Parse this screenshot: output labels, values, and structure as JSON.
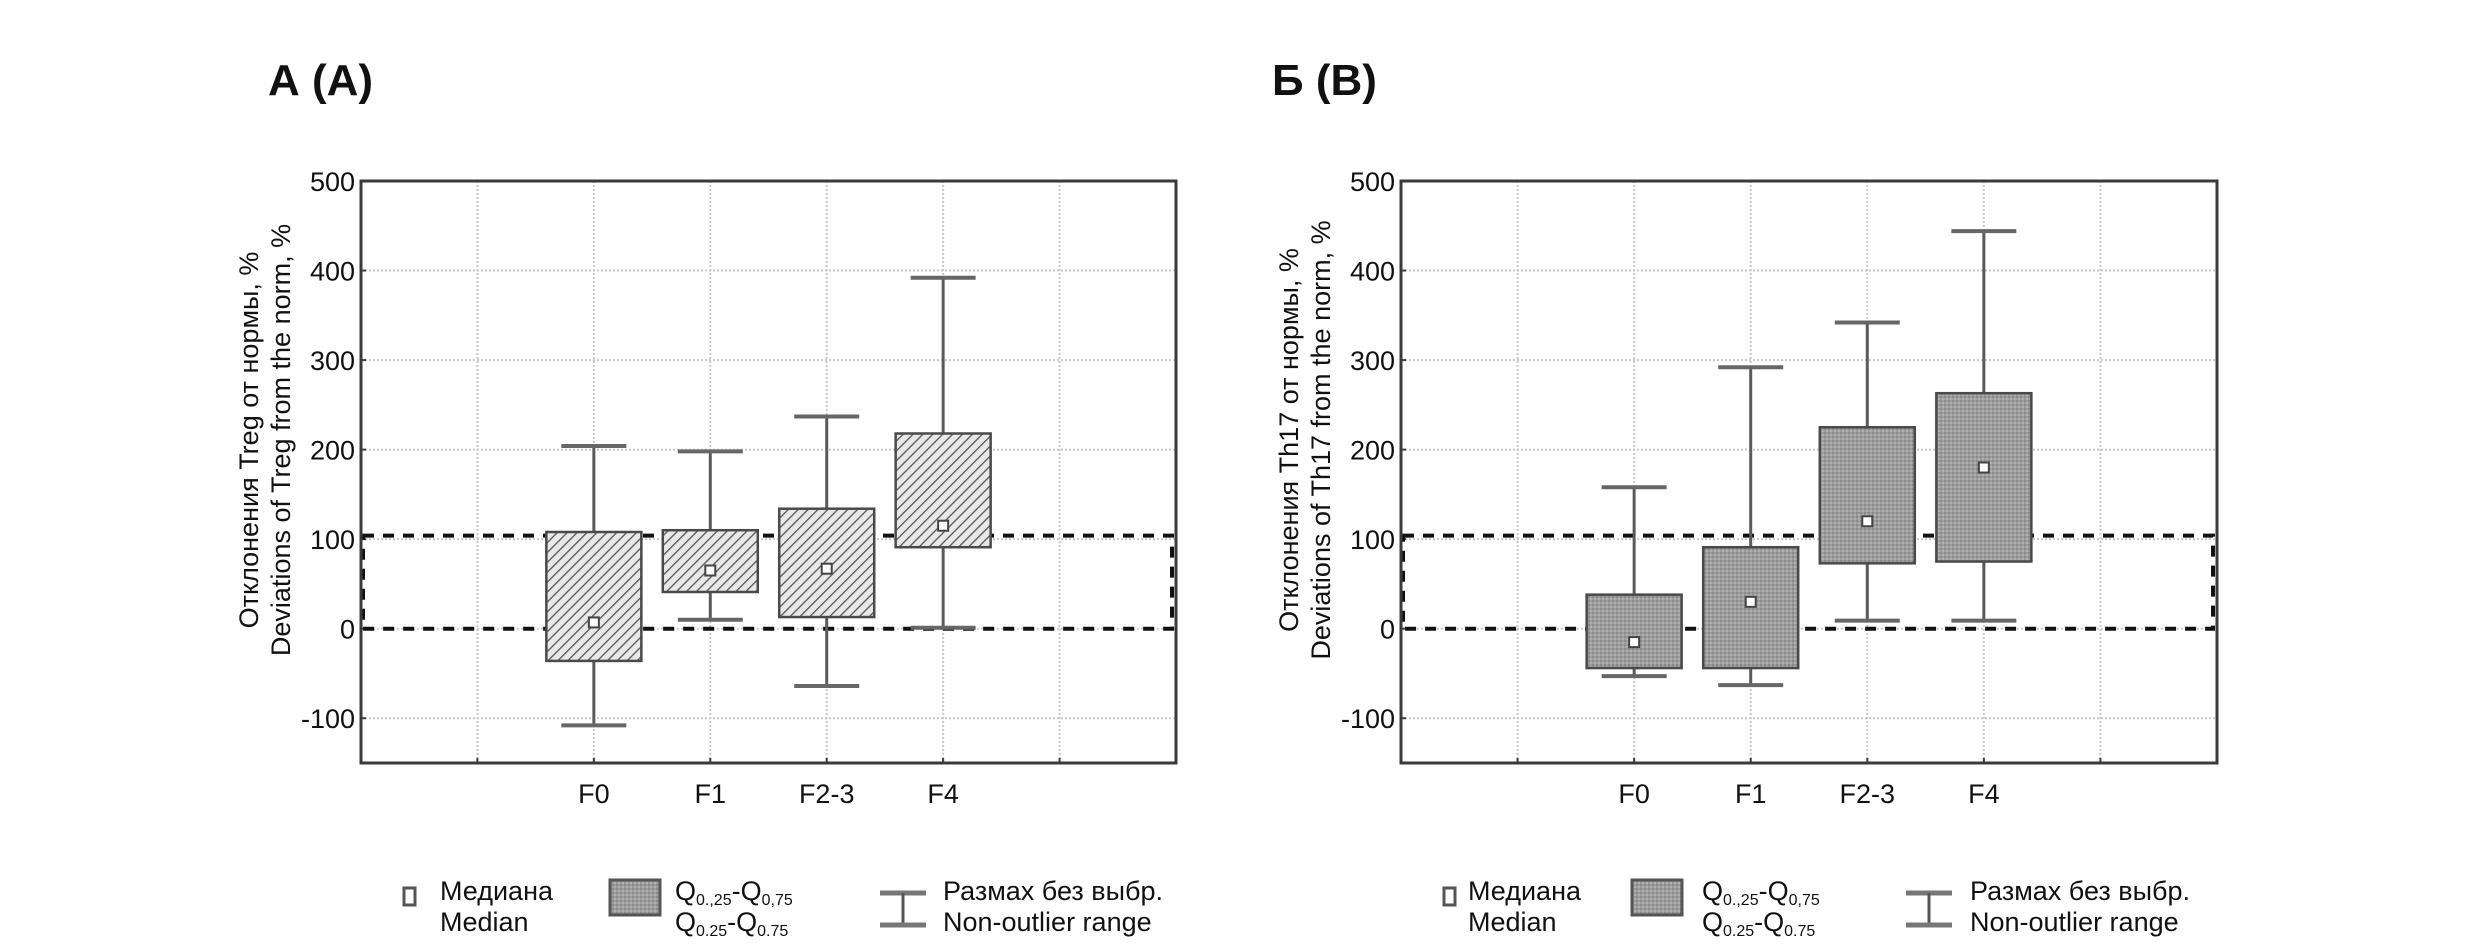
{
  "chart_data": [
    {
      "type": "box",
      "panel_title": "А (A)",
      "ylabel_ru": "Отклонения Treg от нормы, %",
      "ylabel_en": "Deviations of Treg from the norm, %",
      "ylim": [
        -150,
        500
      ],
      "yticks": [
        500,
        400,
        300,
        200,
        100,
        0,
        -100
      ],
      "ytick_labels": [
        "500",
        "400",
        "300",
        "200",
        "100",
        "0",
        "-100"
      ],
      "grid": true,
      "categories": [
        "F0",
        "F1",
        "F2-3",
        "F4"
      ],
      "box_fill": "hatched",
      "whisker_low": [
        -108,
        10,
        -64,
        1
      ],
      "q25": [
        -36,
        41,
        13,
        91
      ],
      "median": [
        7,
        65,
        67,
        115
      ],
      "q75": [
        108,
        110,
        134,
        218
      ],
      "whisker_high": [
        204,
        198,
        237,
        392
      ],
      "norm_band": [
        0,
        104
      ]
    },
    {
      "type": "box",
      "panel_title": "Б (B)",
      "ylabel_ru": "Отклонения Th17 от нормы, %",
      "ylabel_en": "Deviations of Th17 from the norm, %",
      "ylim": [
        -150,
        500
      ],
      "yticks": [
        500,
        400,
        300,
        200,
        100,
        0,
        -100
      ],
      "ytick_labels": [
        "500",
        "400",
        "300",
        "200",
        "100",
        "0",
        "-100"
      ],
      "grid": true,
      "categories": [
        "F0",
        "F1",
        "F2-3",
        "F4"
      ],
      "box_fill": "dotted-gray",
      "whisker_low": [
        -53,
        -63,
        9,
        9
      ],
      "q25": [
        -44,
        -44,
        73,
        75
      ],
      "median": [
        -15,
        30,
        120,
        180
      ],
      "q75": [
        38,
        91,
        225,
        263
      ],
      "whisker_high": [
        158,
        292,
        342,
        444
      ],
      "norm_band": [
        0,
        104
      ]
    }
  ],
  "legend": {
    "placement": "bottom",
    "median_ru": "Медиана",
    "median_en": "Median",
    "q_line1_a": "Q",
    "q_line1_a_sub": "0.,25",
    "q_line1_b": "-Q",
    "q_line1_b_sub": "0,75",
    "q_line2_a": "Q",
    "q_line2_a_sub": "0.25",
    "q_line2_b": "-Q",
    "q_line2_b_sub": "0.75",
    "range_ru": "Размах без выбр.",
    "range_en": "Non-outlier range"
  },
  "colors": {
    "frame": "#3a3a3a",
    "grid": "#c8c8c8",
    "whisker": "#5a5a5a",
    "box_stroke": "#4a4a4a",
    "hatch_bg": "#e6e6e6",
    "hatch_line": "#555555",
    "dot_fill": "#9a9a9a",
    "dashed": "#111111"
  }
}
